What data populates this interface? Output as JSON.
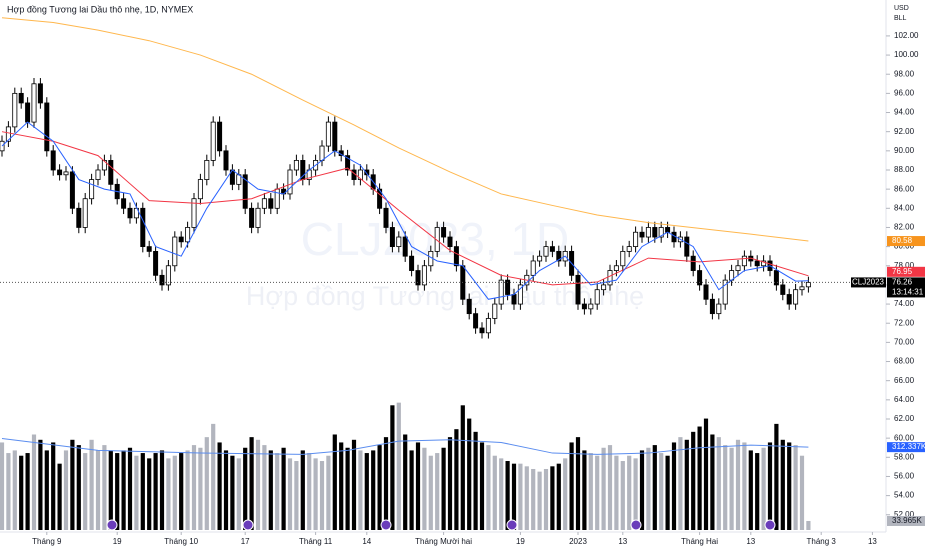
{
  "chart_data": {
    "type": "candlestick",
    "title": "Hợp đồng Tương lai Dầu thô nhẹ, 1D, NYMEX",
    "currency": "USD",
    "unit": "BLL",
    "watermark_symbol": "CLJ2023, 1D",
    "watermark_name": "Hợp đồng Tương lai Dầu thô nhẹ",
    "symbol_tag": "CLJ2023",
    "countdown": "13:14:31",
    "up_color": "#ffffff",
    "down_color": "#000000",
    "last_price_line": true,
    "xlim": [
      -0.3125,
      138.125
    ],
    "xticks": [
      {
        "value": 7,
        "label": "Tháng 9"
      },
      {
        "value": 18,
        "label": "19"
      },
      {
        "value": 28,
        "label": "Tháng 10"
      },
      {
        "value": 38,
        "label": "17"
      },
      {
        "value": 49,
        "label": "Tháng 11"
      },
      {
        "value": 57,
        "label": "14"
      },
      {
        "value": 69,
        "label": "Tháng Mười hai"
      },
      {
        "value": 81,
        "label": "19"
      },
      {
        "value": 90,
        "label": "2023"
      },
      {
        "value": 97,
        "label": "13"
      },
      {
        "value": 109,
        "label": "Tháng Hai"
      },
      {
        "value": 117,
        "label": "13"
      },
      {
        "value": 128,
        "label": "Tháng 3"
      },
      {
        "value": 136,
        "label": "13"
      }
    ],
    "ylim": [
      50.2,
      105.75
    ],
    "yticks": [
      {
        "value": 102,
        "label": "102.00"
      },
      {
        "value": 100,
        "label": "100.00"
      },
      {
        "value": 98,
        "label": "98.00"
      },
      {
        "value": 96,
        "label": "96.00"
      },
      {
        "value": 94,
        "label": "94.00"
      },
      {
        "value": 92,
        "label": "92.00"
      },
      {
        "value": 90,
        "label": "90.00"
      },
      {
        "value": 88,
        "label": "88.00"
      },
      {
        "value": 86,
        "label": "86.00"
      },
      {
        "value": 84,
        "label": "84.00"
      },
      {
        "value": 82,
        "label": "82.00"
      },
      {
        "value": 80,
        "label": "80.00"
      },
      {
        "value": 78,
        "label": "78.00"
      },
      {
        "value": 76,
        "label": "76.00"
      },
      {
        "value": 74,
        "label": "74.00"
      },
      {
        "value": 72,
        "label": "72.00"
      },
      {
        "value": 70,
        "label": "70.00"
      },
      {
        "value": 68,
        "label": "68.00"
      },
      {
        "value": 66,
        "label": "66.00"
      },
      {
        "value": 64,
        "label": "64.00"
      },
      {
        "value": 62,
        "label": "62.00"
      },
      {
        "value": 60,
        "label": "60.00"
      },
      {
        "value": 58,
        "label": "58.00"
      },
      {
        "value": 56,
        "label": "56.00"
      },
      {
        "value": 54,
        "label": "54.00"
      },
      {
        "value": 52,
        "label": "52.00"
      }
    ],
    "open": [
      90,
      91,
      92.5,
      96,
      95,
      93,
      97,
      95,
      90,
      88,
      87.5,
      87.8,
      84,
      82,
      85,
      87,
      88,
      89,
      86.5,
      85,
      84,
      83,
      84,
      80,
      79.5,
      77,
      76,
      78,
      81,
      80.5,
      82,
      85,
      87,
      89,
      93,
      90,
      88,
      86.5,
      87.5,
      84,
      82,
      84,
      85,
      84,
      86,
      85.5,
      88,
      89,
      87,
      88,
      89,
      90.5,
      93,
      90,
      89.5,
      88,
      87,
      88,
      87.5,
      86,
      84,
      82,
      80,
      81,
      79,
      77.5,
      76,
      78,
      79.5,
      82,
      81,
      80,
      78,
      74.5,
      73,
      71.5,
      71,
      72.5,
      74,
      76.5,
      75,
      74,
      76,
      77,
      78.5,
      79,
      80,
      79.5,
      78.5,
      79.5,
      77,
      74,
      73.5,
      74,
      75.5,
      76,
      77.5,
      78,
      79.5,
      80,
      81.5,
      81,
      82,
      81,
      82,
      81.5,
      80.5,
      81,
      79,
      77.5,
      76,
      74.5,
      73,
      74,
      76.5,
      77.5,
      78,
      79,
      78.5,
      78,
      78.5,
      77.5,
      76,
      75,
      74,
      75.5,
      75.8
    ],
    "high": [
      91.6,
      93.1,
      96.6,
      96.6,
      95.6,
      97.6,
      97.6,
      95.6,
      90.6,
      88.6,
      88.4,
      88.4,
      84.6,
      85.6,
      87.6,
      88.6,
      89.6,
      89.6,
      87.1,
      85.6,
      84.6,
      84.6,
      84.6,
      80.6,
      80.1,
      77.6,
      78.6,
      81.6,
      81.6,
      82.6,
      85.6,
      87.6,
      89.6,
      93.6,
      93.6,
      90.6,
      88.6,
      88.1,
      88.1,
      84.6,
      84.6,
      85.6,
      85.6,
      86.6,
      86.6,
      88.6,
      89.6,
      89.6,
      88.6,
      89.6,
      91.1,
      93.6,
      93.6,
      90.6,
      90.1,
      88.6,
      88.6,
      88.6,
      88.1,
      86.6,
      84.6,
      82.6,
      81.6,
      81.6,
      79.6,
      78.1,
      78.6,
      80.1,
      82.6,
      82.6,
      81.6,
      80.6,
      78.6,
      75.1,
      73.6,
      72.1,
      73.1,
      74.6,
      77.1,
      77.1,
      75.6,
      76.6,
      77.6,
      79.1,
      79.6,
      80.6,
      80.6,
      80.1,
      80.1,
      80.1,
      77.6,
      74.6,
      74.6,
      76.1,
      76.6,
      78.1,
      78.6,
      80.1,
      80.6,
      82.1,
      82.1,
      82.6,
      82.6,
      82.6,
      82.6,
      82.1,
      81.6,
      81.6,
      79.6,
      78.1,
      76.6,
      75.1,
      74.6,
      77.1,
      78.1,
      78.6,
      79.6,
      79.6,
      79.1,
      79.1,
      79.1,
      78.1,
      76.6,
      75.6,
      76.1,
      76.4,
      76.86
    ],
    "low": [
      89.4,
      90.4,
      91.9,
      94.4,
      92.4,
      92.4,
      94.4,
      89.4,
      87.4,
      86.9,
      86.9,
      83.4,
      81.4,
      81.4,
      84.4,
      86.4,
      87.4,
      85.9,
      84.4,
      83.4,
      82.4,
      82.4,
      79.4,
      78.9,
      76.4,
      75.4,
      75.4,
      77.4,
      79.9,
      79.9,
      81.4,
      84.4,
      86.4,
      88.4,
      89.4,
      87.4,
      85.9,
      85.9,
      83.4,
      81.4,
      81.4,
      83.4,
      83.4,
      83.4,
      84.9,
      84.9,
      87.4,
      86.4,
      86.4,
      87.4,
      88.4,
      89.9,
      89.4,
      88.9,
      87.4,
      86.4,
      86.4,
      86.9,
      85.4,
      83.4,
      81.4,
      79.4,
      79.4,
      78.4,
      76.9,
      75.4,
      75.4,
      77.4,
      78.9,
      80.4,
      79.4,
      77.4,
      73.9,
      72.4,
      70.9,
      70.4,
      70.4,
      71.9,
      73.4,
      74.4,
      73.4,
      73.4,
      75.4,
      76.4,
      77.9,
      78.4,
      78.9,
      77.9,
      77.9,
      76.4,
      73.4,
      72.9,
      72.9,
      73.4,
      74.9,
      75.4,
      76.9,
      77.4,
      78.9,
      79.4,
      80.4,
      80.4,
      80.4,
      80.4,
      80.9,
      79.9,
      79.9,
      78.4,
      76.9,
      75.4,
      73.9,
      72.4,
      72.4,
      73.4,
      75.9,
      76.9,
      77.4,
      77.9,
      77.4,
      77.4,
      76.9,
      75.4,
      74.4,
      73.4,
      73.4,
      74.9,
      75.2
    ],
    "close": [
      91,
      92.5,
      96,
      95,
      93,
      97,
      95,
      90,
      88,
      87.5,
      87.8,
      84,
      82,
      85,
      87,
      88,
      89,
      86.5,
      85,
      84,
      83,
      84,
      80,
      79.5,
      77,
      76,
      78,
      81,
      80.5,
      82,
      85,
      87,
      89,
      93,
      90,
      88,
      86.5,
      87.5,
      84,
      82,
      84,
      85,
      84,
      86,
      85.5,
      88,
      89,
      87,
      88,
      89,
      90.5,
      93,
      90,
      89.5,
      88,
      87,
      88,
      87.5,
      86,
      84,
      82,
      80,
      81,
      79,
      77.5,
      76,
      78,
      79.5,
      82,
      81,
      80,
      78,
      74.5,
      73,
      71.5,
      71,
      72.5,
      74,
      76.5,
      75,
      74,
      76,
      77,
      78.5,
      79,
      80,
      79.5,
      78.5,
      79.5,
      77,
      74,
      73.5,
      74,
      75.5,
      76,
      77.5,
      78,
      79.5,
      80,
      81.5,
      81,
      82,
      81,
      82,
      81.5,
      80.5,
      81,
      79,
      77.5,
      76,
      74.5,
      73,
      74,
      76.5,
      77.5,
      78,
      79,
      78.5,
      78,
      78.5,
      77.5,
      76,
      75,
      74,
      75.5,
      75.8,
      76.26
    ],
    "moving_averages": [
      {
        "color": "#ffb74d",
        "label_color": "#f7941d",
        "x": [
          0,
          8,
          15,
          23,
          31,
          39,
          47,
          55,
          62,
          70,
          78,
          86,
          93,
          101,
          109,
          117,
          126
        ],
        "values": [
          103.9,
          103.4,
          102.6,
          101.5,
          100,
          98,
          95.3,
          92.7,
          90.3,
          87.8,
          85.5,
          84.3,
          83.3,
          82.5,
          81.9,
          81.3,
          80.58
        ]
      },
      {
        "color": "#f23645",
        "label_color": "#f23645",
        "x": [
          0,
          8,
          15,
          23,
          31,
          39,
          47,
          54,
          62,
          70,
          78,
          86,
          93,
          101,
          109,
          117,
          126
        ],
        "values": [
          92,
          91,
          89.5,
          84.8,
          84.5,
          85,
          87,
          88.2,
          83.8,
          79.6,
          77,
          76,
          76.3,
          78.8,
          78.4,
          78.8,
          76.95
        ]
      },
      {
        "color": "#2962ff",
        "label_color": "#2962ff",
        "x": [
          0,
          4,
          8,
          12,
          16,
          20,
          24,
          28,
          32,
          36,
          40,
          44,
          48,
          52,
          56,
          60,
          64,
          68,
          72,
          76,
          80,
          84,
          88,
          92,
          96,
          100,
          104,
          108,
          112,
          116,
          120,
          124,
          126
        ],
        "values": [
          90.5,
          93,
          91,
          87,
          86,
          85.5,
          80,
          79,
          84,
          88,
          86,
          85.5,
          88,
          90,
          88.5,
          85,
          80,
          78.5,
          78,
          74.5,
          75,
          77.5,
          79,
          76,
          76.5,
          80,
          81.5,
          80,
          75.5,
          77.5,
          78,
          76.4,
          76.43
        ]
      }
    ],
    "volume": {
      "up_color": "#b2b5be",
      "down_color": "#000000",
      "label_color": "#b2b5be",
      "ylim": [
        0,
        490
      ],
      "values": [
        330,
        290,
        300,
        280,
        290,
        360,
        340,
        300,
        330,
        250,
        300,
        340,
        320,
        290,
        340,
        300,
        320,
        300,
        290,
        300,
        310,
        280,
        290,
        270,
        290,
        300,
        270,
        280,
        290,
        300,
        320,
        310,
        350,
        400,
        330,
        300,
        280,
        270,
        310,
        350,
        340,
        320,
        300,
        290,
        310,
        270,
        260,
        300,
        290,
        270,
        260,
        280,
        360,
        330,
        310,
        340,
        300,
        290,
        300,
        320,
        350,
        470,
        480,
        360,
        300,
        330,
        310,
        280,
        290,
        310,
        350,
        380,
        470,
        420,
        370,
        330,
        320,
        280,
        270,
        260,
        250,
        250,
        240,
        230,
        220,
        230,
        240,
        250,
        270,
        330,
        350,
        300,
        290,
        280,
        310,
        320,
        280,
        260,
        280,
        270,
        300,
        310,
        320,
        290,
        280,
        330,
        350,
        340,
        370,
        390,
        420,
        360,
        350,
        320,
        310,
        340,
        330,
        300,
        290,
        310,
        330,
        400,
        340,
        330,
        320,
        280,
        33.965
      ],
      "value_labels": [
        null,
        null,
        null,
        null,
        null,
        null,
        null,
        null,
        null,
        null,
        null,
        null,
        null,
        null,
        null,
        null,
        null,
        null,
        null,
        null,
        null,
        null,
        null,
        null,
        null,
        null,
        null,
        null,
        null,
        null,
        null,
        null,
        null,
        null,
        null,
        null,
        null,
        null,
        null,
        null,
        null,
        null,
        null,
        null,
        null,
        null,
        null,
        null,
        null,
        null,
        null,
        null,
        null,
        null,
        null,
        null,
        null,
        null,
        null,
        null,
        null,
        null,
        null,
        null,
        null,
        null,
        null,
        null,
        null,
        null,
        null,
        null,
        null,
        null,
        null,
        null,
        null,
        null,
        null,
        null,
        null,
        null,
        null,
        null,
        null,
        null,
        null,
        null,
        null,
        null,
        null,
        null,
        null,
        null,
        null,
        null,
        null,
        null,
        null,
        null,
        null,
        null,
        null,
        null,
        null,
        null,
        null,
        null,
        null,
        null,
        null,
        null,
        null,
        null,
        null,
        null,
        null,
        null,
        null,
        null,
        null,
        null,
        null,
        null,
        null,
        null,
        "33.965K"
      ],
      "ma": {
        "color": "#5b8def",
        "label_color": "#2962ff",
        "x": [
          0,
          15,
          31,
          47,
          54,
          62,
          70,
          78,
          86,
          93,
          101,
          109,
          117,
          126
        ],
        "values": [
          345,
          300,
          290,
          285,
          300,
          335,
          340,
          330,
          290,
          285,
          290,
          310,
          320,
          312.337
        ],
        "value_labels": [
          null,
          null,
          null,
          null,
          null,
          null,
          null,
          null,
          null,
          null,
          null,
          null,
          null,
          "312.337K"
        ]
      }
    }
  }
}
